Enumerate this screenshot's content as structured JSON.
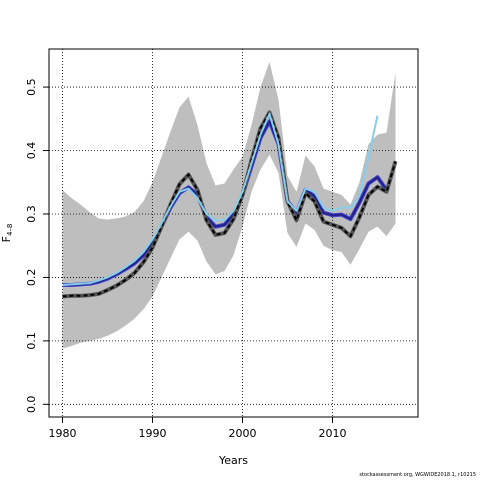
{
  "chart_data": {
    "type": "line",
    "title": "",
    "xlabel": "Years",
    "ylabel": "F",
    "ylabel_subscript": "4–8",
    "xlim": [
      1978.5,
      2019.5
    ],
    "ylim": [
      -0.02,
      0.56
    ],
    "x_ticks": [
      1980,
      1990,
      2000,
      2010
    ],
    "y_ticks": [
      0.0,
      0.1,
      0.2,
      0.3,
      0.4,
      0.5
    ],
    "y_tick_labels": [
      "0.0",
      "0.1",
      "0.2",
      "0.3",
      "0.4",
      "0.5"
    ],
    "grid": true,
    "grid_style": "dotted",
    "colors": {
      "band": "#bebebe",
      "estimate": "#222288",
      "light_series": "#87ceeb",
      "dashed_series": "#000000",
      "dashed_outline": "#555555",
      "blue_outline": "#4444cc"
    },
    "band": {
      "x": [
        1980,
        1981,
        1982,
        1983,
        1984,
        1985,
        1986,
        1987,
        1988,
        1989,
        1990,
        1991,
        1992,
        1993,
        1994,
        1995,
        1996,
        1997,
        1998,
        1999,
        2000,
        2001,
        2002,
        2003,
        2004,
        2005,
        2006,
        2007,
        2008,
        2009,
        2010,
        2011,
        2012,
        2013,
        2014,
        2015,
        2016,
        2017
      ],
      "upper": [
        0.338,
        0.325,
        0.315,
        0.303,
        0.293,
        0.291,
        0.293,
        0.296,
        0.303,
        0.32,
        0.35,
        0.39,
        0.43,
        0.468,
        0.485,
        0.44,
        0.38,
        0.345,
        0.348,
        0.37,
        0.39,
        0.44,
        0.5,
        0.54,
        0.48,
        0.36,
        0.335,
        0.392,
        0.375,
        0.34,
        0.335,
        0.33,
        0.315,
        0.35,
        0.41,
        0.425,
        0.428,
        0.523
      ],
      "lower": [
        0.088,
        0.092,
        0.097,
        0.1,
        0.103,
        0.108,
        0.115,
        0.124,
        0.135,
        0.15,
        0.17,
        0.2,
        0.23,
        0.26,
        0.272,
        0.258,
        0.225,
        0.205,
        0.21,
        0.235,
        0.28,
        0.335,
        0.37,
        0.393,
        0.365,
        0.27,
        0.248,
        0.285,
        0.275,
        0.25,
        0.243,
        0.24,
        0.22,
        0.245,
        0.272,
        0.28,
        0.265,
        0.285
      ]
    },
    "series": [
      {
        "style": "solid-blue",
        "x": [
          1980,
          1981,
          1982,
          1983,
          1984,
          1985,
          1986,
          1987,
          1988,
          1989,
          1990,
          1991,
          1992,
          1993,
          1994,
          1995,
          1996,
          1997,
          1998,
          1999,
          2000,
          2001,
          2002,
          2003,
          2004,
          2005,
          2006,
          2007,
          2008,
          2009,
          2010,
          2011,
          2012,
          2013,
          2014,
          2015,
          2016
        ],
        "values": [
          0.188,
          0.188,
          0.189,
          0.19,
          0.193,
          0.198,
          0.205,
          0.213,
          0.222,
          0.235,
          0.255,
          0.28,
          0.31,
          0.333,
          0.342,
          0.33,
          0.295,
          0.28,
          0.283,
          0.3,
          0.33,
          0.375,
          0.42,
          0.446,
          0.41,
          0.32,
          0.302,
          0.338,
          0.328,
          0.302,
          0.298,
          0.299,
          0.292,
          0.318,
          0.348,
          0.358,
          0.338
        ]
      },
      {
        "style": "dashed-black",
        "x": [
          1980,
          1981,
          1982,
          1983,
          1984,
          1985,
          1986,
          1987,
          1988,
          1989,
          1990,
          1991,
          1992,
          1993,
          1994,
          1995,
          1996,
          1997,
          1998,
          1999,
          2000,
          2001,
          2002,
          2003,
          2004,
          2005,
          2006,
          2007,
          2008,
          2009,
          2010,
          2011,
          2012,
          2013,
          2014,
          2015,
          2016,
          2017
        ],
        "values": [
          0.17,
          0.171,
          0.171,
          0.172,
          0.174,
          0.18,
          0.187,
          0.196,
          0.207,
          0.224,
          0.247,
          0.28,
          0.315,
          0.347,
          0.362,
          0.338,
          0.29,
          0.267,
          0.27,
          0.292,
          0.33,
          0.385,
          0.435,
          0.46,
          0.42,
          0.32,
          0.29,
          0.333,
          0.32,
          0.288,
          0.283,
          0.278,
          0.265,
          0.295,
          0.33,
          0.343,
          0.335,
          0.383
        ]
      },
      {
        "style": "light-blue",
        "x": [
          1980,
          1981,
          1982,
          1983,
          1984,
          1985,
          1986,
          1987,
          1988,
          1989,
          1990,
          1991,
          1992,
          1993,
          1994,
          1995,
          1996,
          1997,
          1998,
          1999,
          2000,
          2001,
          2002,
          2003,
          2004,
          2005,
          2006,
          2007,
          2008,
          2009,
          2010,
          2011,
          2012,
          2013,
          2014,
          2015
        ],
        "values": [
          0.188,
          0.189,
          0.19,
          0.191,
          0.195,
          0.2,
          0.207,
          0.216,
          0.226,
          0.24,
          0.26,
          0.285,
          0.312,
          0.335,
          0.34,
          0.325,
          0.3,
          0.29,
          0.29,
          0.305,
          0.335,
          0.38,
          0.425,
          0.458,
          0.41,
          0.32,
          0.305,
          0.34,
          0.335,
          0.31,
          0.305,
          0.31,
          0.31,
          0.33,
          0.39,
          0.455
        ]
      }
    ]
  },
  "credit": "stockassessment.org, WGWIDE2018.1, r10215"
}
